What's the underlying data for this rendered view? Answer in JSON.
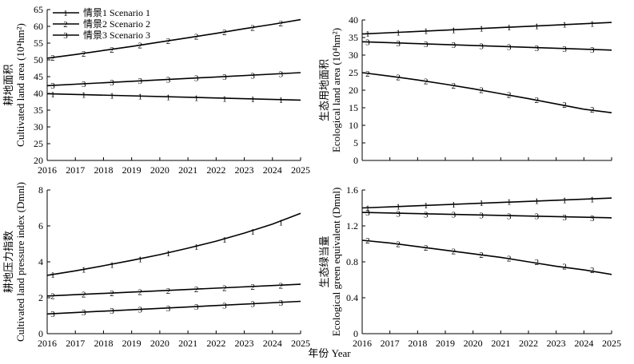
{
  "figure": {
    "shared_xlabel": "年份 Year",
    "legend": [
      {
        "marker": "1",
        "label": "情景1 Scenario 1"
      },
      {
        "marker": "2",
        "label": "情景2 Scenario 2"
      },
      {
        "marker": "3",
        "label": "情景3 Scenario 3"
      }
    ]
  },
  "chart_data": [
    {
      "panel": "top-left",
      "type": "line",
      "ylabel_line1": "耕地面积",
      "ylabel_line2": "Cultivated land area (10⁴hm²)",
      "xlim": [
        2016,
        2025
      ],
      "ylim": [
        20,
        65
      ],
      "xticks": [
        2016,
        2017,
        2018,
        2019,
        2020,
        2021,
        2022,
        2023,
        2024,
        2025
      ],
      "yticks": [
        20,
        25,
        30,
        35,
        40,
        45,
        50,
        55,
        60,
        65
      ],
      "legend_position": "top-left",
      "series": [
        {
          "marker": "1",
          "x": [
            2016,
            2025
          ],
          "y": [
            39.9,
            38.0
          ],
          "marker_x": [
            2016.2,
            2017.3,
            2018.3,
            2019.3,
            2020.3,
            2021.3,
            2022.3,
            2023.3,
            2024.3
          ],
          "marker_y": [
            39.8,
            39.6,
            39.4,
            39.2,
            38.9,
            38.7,
            38.5,
            38.3,
            38.1
          ]
        },
        {
          "marker": "3",
          "x": [
            2016,
            2025
          ],
          "y": [
            42.3,
            46.2
          ],
          "marker_x": [
            2016.2,
            2017.3,
            2018.3,
            2019.3,
            2020.3,
            2021.3,
            2022.3,
            2023.3,
            2024.3
          ],
          "marker_y": [
            42.4,
            42.9,
            43.3,
            43.8,
            44.2,
            44.6,
            45.0,
            45.4,
            45.8
          ]
        },
        {
          "marker": "2",
          "x": [
            2016,
            2017,
            2018,
            2019,
            2020,
            2021,
            2022,
            2023,
            2024,
            2025
          ],
          "y": [
            50.5,
            51.6,
            52.8,
            54.0,
            55.3,
            56.6,
            57.9,
            59.3,
            60.6,
            62.0
          ],
          "marker_x": [
            2016.2,
            2017.3,
            2018.3,
            2019.3,
            2020.3,
            2021.3,
            2022.3,
            2023.3,
            2024.3
          ],
          "marker_y": [
            50.7,
            51.9,
            53.1,
            54.4,
            55.7,
            57.0,
            58.3,
            59.7,
            61.0
          ]
        }
      ]
    },
    {
      "panel": "top-right",
      "type": "line",
      "ylabel_line1": "生态用地面积",
      "ylabel_line2": "Ecological land area (10⁴hm²)",
      "xlim": [
        2016,
        2025
      ],
      "ylim": [
        0,
        40
      ],
      "xticks": [],
      "yticks": [
        0,
        5,
        10,
        15,
        20,
        25,
        30,
        35,
        40
      ],
      "series": [
        {
          "marker": "1",
          "x": [
            2016,
            2025
          ],
          "y": [
            36.0,
            39.3
          ],
          "marker_x": [
            2016.2,
            2017.3,
            2018.3,
            2019.3,
            2020.3,
            2021.3,
            2022.3,
            2023.3,
            2024.3
          ],
          "marker_y": [
            36.1,
            36.5,
            36.9,
            37.2,
            37.6,
            38.0,
            38.3,
            38.7,
            39.0
          ]
        },
        {
          "marker": "3",
          "x": [
            2016,
            2025
          ],
          "y": [
            33.8,
            31.4
          ],
          "marker_x": [
            2016.2,
            2017.3,
            2018.3,
            2019.3,
            2020.3,
            2021.3,
            2022.3,
            2023.3,
            2024.3
          ],
          "marker_y": [
            33.7,
            33.4,
            33.2,
            32.9,
            32.6,
            32.4,
            32.1,
            31.8,
            31.6
          ]
        },
        {
          "marker": "2",
          "x": [
            2016,
            2017,
            2018,
            2019,
            2020,
            2021,
            2022,
            2023,
            2024,
            2025
          ],
          "y": [
            25.0,
            24.0,
            22.9,
            21.7,
            20.4,
            19.0,
            17.6,
            16.1,
            14.6,
            13.6
          ],
          "marker_x": [
            2016.2,
            2017.3,
            2018.3,
            2019.3,
            2020.3,
            2021.3,
            2022.3,
            2023.3,
            2024.3
          ],
          "marker_y": [
            24.8,
            23.7,
            22.6,
            21.4,
            20.1,
            18.7,
            17.3,
            15.9,
            14.6
          ]
        }
      ]
    },
    {
      "panel": "bottom-left",
      "type": "line",
      "ylabel_line1": "耕地压力指数",
      "ylabel_line2": "Cultivated land pressure index (Dmnl)",
      "xlim": [
        2016,
        2025
      ],
      "ylim": [
        0,
        8
      ],
      "xticks": [
        2016,
        2017,
        2018,
        2019,
        2020,
        2021,
        2022,
        2023,
        2024,
        2025
      ],
      "yticks": [
        0,
        2,
        4,
        6,
        8
      ],
      "series": [
        {
          "marker": "3",
          "x": [
            2016,
            2025
          ],
          "y": [
            1.1,
            1.8
          ],
          "marker_x": [
            2016.2,
            2017.3,
            2018.3,
            2019.3,
            2020.3,
            2021.3,
            2022.3,
            2023.3,
            2024.3
          ],
          "marker_y": [
            1.12,
            1.2,
            1.28,
            1.35,
            1.43,
            1.51,
            1.58,
            1.66,
            1.74
          ]
        },
        {
          "marker": "2",
          "x": [
            2016,
            2025
          ],
          "y": [
            2.1,
            2.75
          ],
          "marker_x": [
            2016.2,
            2017.3,
            2018.3,
            2019.3,
            2020.3,
            2021.3,
            2022.3,
            2023.3,
            2024.3
          ],
          "marker_y": [
            2.12,
            2.19,
            2.26,
            2.34,
            2.41,
            2.48,
            2.55,
            2.62,
            2.69
          ]
        },
        {
          "marker": "1",
          "x": [
            2016,
            2017,
            2018,
            2019,
            2020,
            2021,
            2022,
            2023,
            2024,
            2025
          ],
          "y": [
            3.25,
            3.5,
            3.78,
            4.08,
            4.4,
            4.76,
            5.15,
            5.6,
            6.1,
            6.7
          ],
          "marker_x": [
            2016.2,
            2017.3,
            2018.3,
            2019.3,
            2020.3,
            2021.3,
            2022.3,
            2023.3,
            2024.3
          ],
          "marker_y": [
            3.3,
            3.57,
            3.85,
            4.15,
            4.48,
            4.85,
            5.25,
            5.7,
            6.2
          ]
        }
      ]
    },
    {
      "panel": "bottom-right",
      "type": "line",
      "ylabel_line1": "生态绿当量",
      "ylabel_line2": "Ecological green equivalent (Dmnl)",
      "xlim": [
        2016,
        2025
      ],
      "ylim": [
        0,
        1.6
      ],
      "xticks": [
        2016,
        2017,
        2018,
        2019,
        2020,
        2021,
        2022,
        2023,
        2024,
        2025
      ],
      "yticks": [
        0,
        0.4,
        0.8,
        1.2,
        1.6
      ],
      "series": [
        {
          "marker": "1",
          "x": [
            2016,
            2025
          ],
          "y": [
            1.4,
            1.51
          ],
          "marker_x": [
            2016.2,
            2017.3,
            2018.3,
            2019.3,
            2020.3,
            2021.3,
            2022.3,
            2023.3,
            2024.3
          ],
          "marker_y": [
            1.4,
            1.42,
            1.43,
            1.44,
            1.46,
            1.47,
            1.48,
            1.49,
            1.5
          ]
        },
        {
          "marker": "3",
          "x": [
            2016,
            2025
          ],
          "y": [
            1.35,
            1.29
          ],
          "marker_x": [
            2016.2,
            2017.3,
            2018.3,
            2019.3,
            2020.3,
            2021.3,
            2022.3,
            2023.3,
            2024.3
          ],
          "marker_y": [
            1.35,
            1.34,
            1.33,
            1.33,
            1.32,
            1.31,
            1.31,
            1.3,
            1.29
          ]
        },
        {
          "marker": "2",
          "x": [
            2016,
            2017,
            2018,
            2019,
            2020,
            2021,
            2022,
            2023,
            2024,
            2025
          ],
          "y": [
            1.04,
            1.01,
            0.97,
            0.93,
            0.89,
            0.85,
            0.8,
            0.75,
            0.71,
            0.66
          ],
          "marker_x": [
            2016.2,
            2017.3,
            2018.3,
            2019.3,
            2020.3,
            2021.3,
            2022.3,
            2023.3,
            2024.3
          ],
          "marker_y": [
            1.04,
            1.0,
            0.96,
            0.92,
            0.88,
            0.84,
            0.8,
            0.75,
            0.71
          ]
        }
      ]
    }
  ]
}
